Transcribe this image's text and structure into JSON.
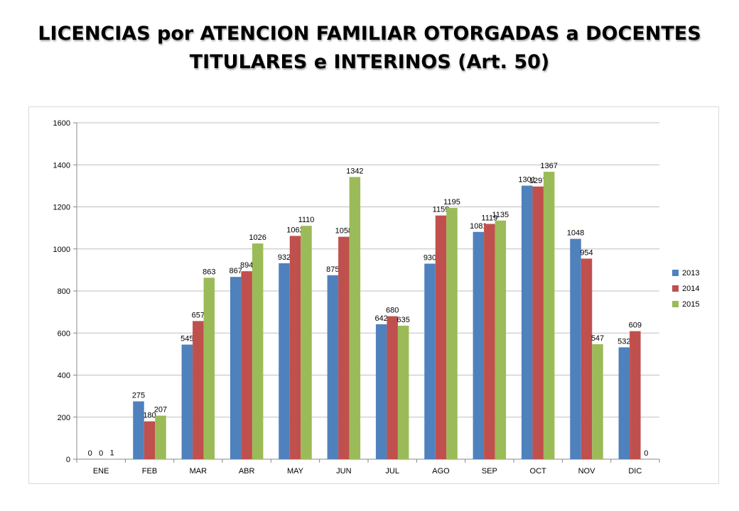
{
  "title": {
    "line1": "LICENCIAS por ATENCION FAMILIAR OTORGADAS a DOCENTES",
    "line2": "TITULARES e INTERINOS (Art. 50)"
  },
  "chart_data": {
    "type": "bar",
    "title": "LICENCIAS por ATENCION FAMILIAR OTORGADAS a DOCENTES TITULARES e INTERINOS (Art. 50)",
    "xlabel": "",
    "ylabel": "",
    "categories": [
      "ENE",
      "FEB",
      "MAR",
      "ABR",
      "MAY",
      "JUN",
      "JUL",
      "AGO",
      "SEP",
      "OCT",
      "NOV",
      "DIC"
    ],
    "ylim": [
      0,
      1600
    ],
    "yticks": [
      0,
      200,
      400,
      600,
      800,
      1000,
      1200,
      1400,
      1600
    ],
    "grid": true,
    "legend_position": "right",
    "series": [
      {
        "name": "2013",
        "color": "#4F81BD",
        "values": [
          0,
          275,
          545,
          867,
          932,
          875,
          642,
          930,
          1081,
          1301,
          1048,
          532
        ]
      },
      {
        "name": "2014",
        "color": "#C0504D",
        "values": [
          0,
          180,
          657,
          894,
          1062,
          1058,
          680,
          1159,
          1119,
          1297,
          954,
          609
        ]
      },
      {
        "name": "2015",
        "color": "#9BBB59",
        "values": [
          1,
          207,
          863,
          1026,
          1110,
          1342,
          635,
          1195,
          1135,
          1367,
          547,
          0
        ]
      }
    ]
  }
}
